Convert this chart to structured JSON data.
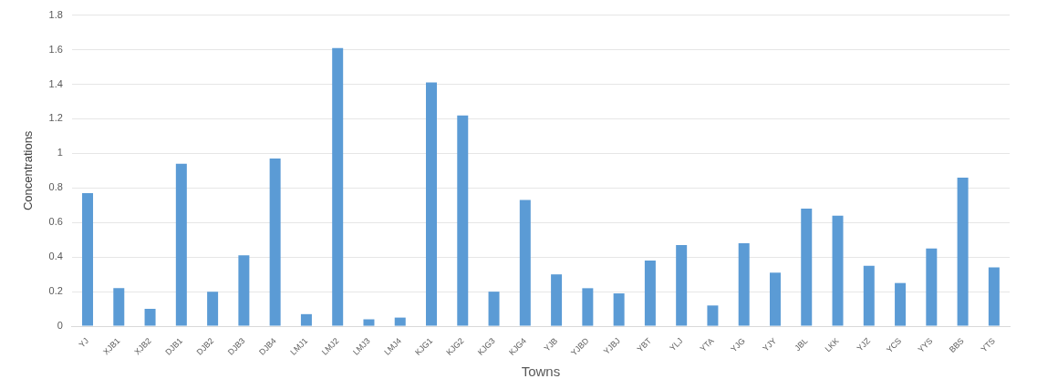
{
  "chart_data": {
    "type": "bar",
    "xlabel": "Towns",
    "ylabel": "Concentrations",
    "categories": [
      "YJ",
      "XJB1",
      "XJB2",
      "DJB1",
      "DJB2",
      "DJB3",
      "DJB4",
      "LMJ1",
      "LMJ2",
      "LMJ3",
      "LMJ4",
      "KJG1",
      "KJG2",
      "KJG3",
      "KJG4",
      "YJB",
      "YJBD",
      "YJBJ",
      "YBT",
      "YLJ",
      "YTA",
      "YJG",
      "YJY",
      "JBL",
      "LKK",
      "YJZ",
      "YCS",
      "YYS",
      "BBS",
      "YTS"
    ],
    "values": [
      0.77,
      0.22,
      0.1,
      0.94,
      0.2,
      0.41,
      0.97,
      0.07,
      1.61,
      0.04,
      0.05,
      1.41,
      1.22,
      0.2,
      0.73,
      0.3,
      0.22,
      0.19,
      0.38,
      0.47,
      0.12,
      0.48,
      0.31,
      0.68,
      0.64,
      0.35,
      0.25,
      0.45,
      0.86,
      0.34
    ],
    "color": "#5b9bd5",
    "ylim": [
      0,
      1.8
    ],
    "yticks": [
      0,
      0.2,
      0.4,
      0.6,
      0.8,
      1,
      1.2,
      1.4,
      1.6,
      1.8
    ],
    "grid": "y",
    "legend": false
  }
}
